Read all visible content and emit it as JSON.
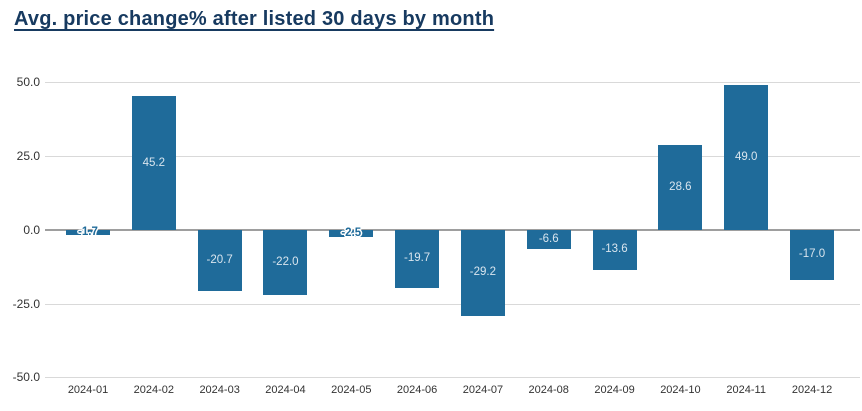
{
  "title": "Avg. price change% after listed 30 days by month",
  "colors": {
    "background": "#ffffff",
    "bar": "#1f6b9a",
    "title": "#173a60",
    "axis_label": "#333333",
    "gridline": "#d9d9d9",
    "zero_line": "#9e9e9e",
    "bar_label_inside": "#d9e5ee",
    "bar_label_small": "#1f6b9a"
  },
  "chart_data": {
    "type": "bar",
    "title": "Avg. price change% after listed 30 days by month",
    "categories": [
      "2024-01",
      "2024-02",
      "2024-03",
      "2024-04",
      "2024-05",
      "2024-06",
      "2024-07",
      "2024-08",
      "2024-09",
      "2024-10",
      "2024-11",
      "2024-12"
    ],
    "values": [
      -1.7,
      45.2,
      -20.7,
      -22.0,
      -2.5,
      -19.7,
      -29.2,
      -6.6,
      -13.6,
      28.6,
      49.0,
      -17.0
    ],
    "value_labels": [
      "-1.7",
      "45.2",
      "-20.7",
      "-22.0",
      "-2.5",
      "-19.7",
      "-29.2",
      "-6.6",
      "-13.6",
      "28.6",
      "49.0",
      "-17.0"
    ],
    "xlabel": "",
    "ylabel": "",
    "ylim": [
      -50,
      50
    ],
    "yticks": [
      50.0,
      25.0,
      0.0,
      -25.0,
      -50.0
    ],
    "ytick_labels": [
      "50.0",
      "25.0",
      "0.0",
      "-25.0",
      "-50.0"
    ],
    "grid": true,
    "legend": false,
    "value_label_position": "center-of-bar"
  }
}
